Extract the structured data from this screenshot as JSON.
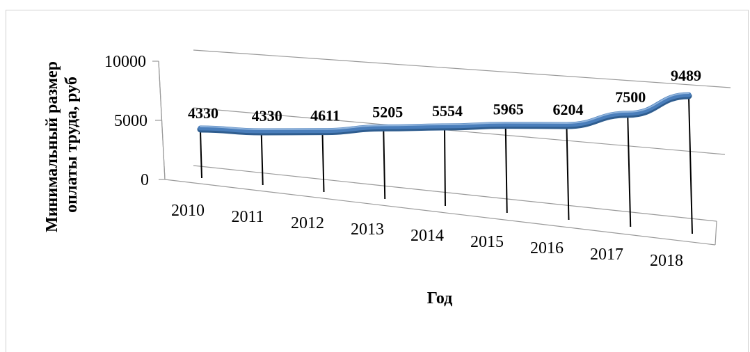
{
  "chart_data": {
    "type": "line",
    "categories": [
      "2010",
      "2011",
      "2012",
      "2013",
      "2014",
      "2015",
      "2016",
      "2017",
      "2018"
    ],
    "values": [
      4330,
      4330,
      4611,
      5205,
      5554,
      5965,
      6204,
      7500,
      9489
    ],
    "data_labels": [
      "4330",
      "4330",
      "4611",
      "5205",
      "5554",
      "5965",
      "6204",
      "7500",
      "9489"
    ],
    "xlabel": "Год",
    "ylabel_lines": [
      "Минимальный размер",
      "оплаты труда, руб"
    ],
    "y_ticks": [
      "0",
      "5000",
      "10000"
    ],
    "ylim": [
      0,
      10000
    ],
    "grid": true,
    "style": "3d-line",
    "line_color": "#4a7ebb"
  }
}
